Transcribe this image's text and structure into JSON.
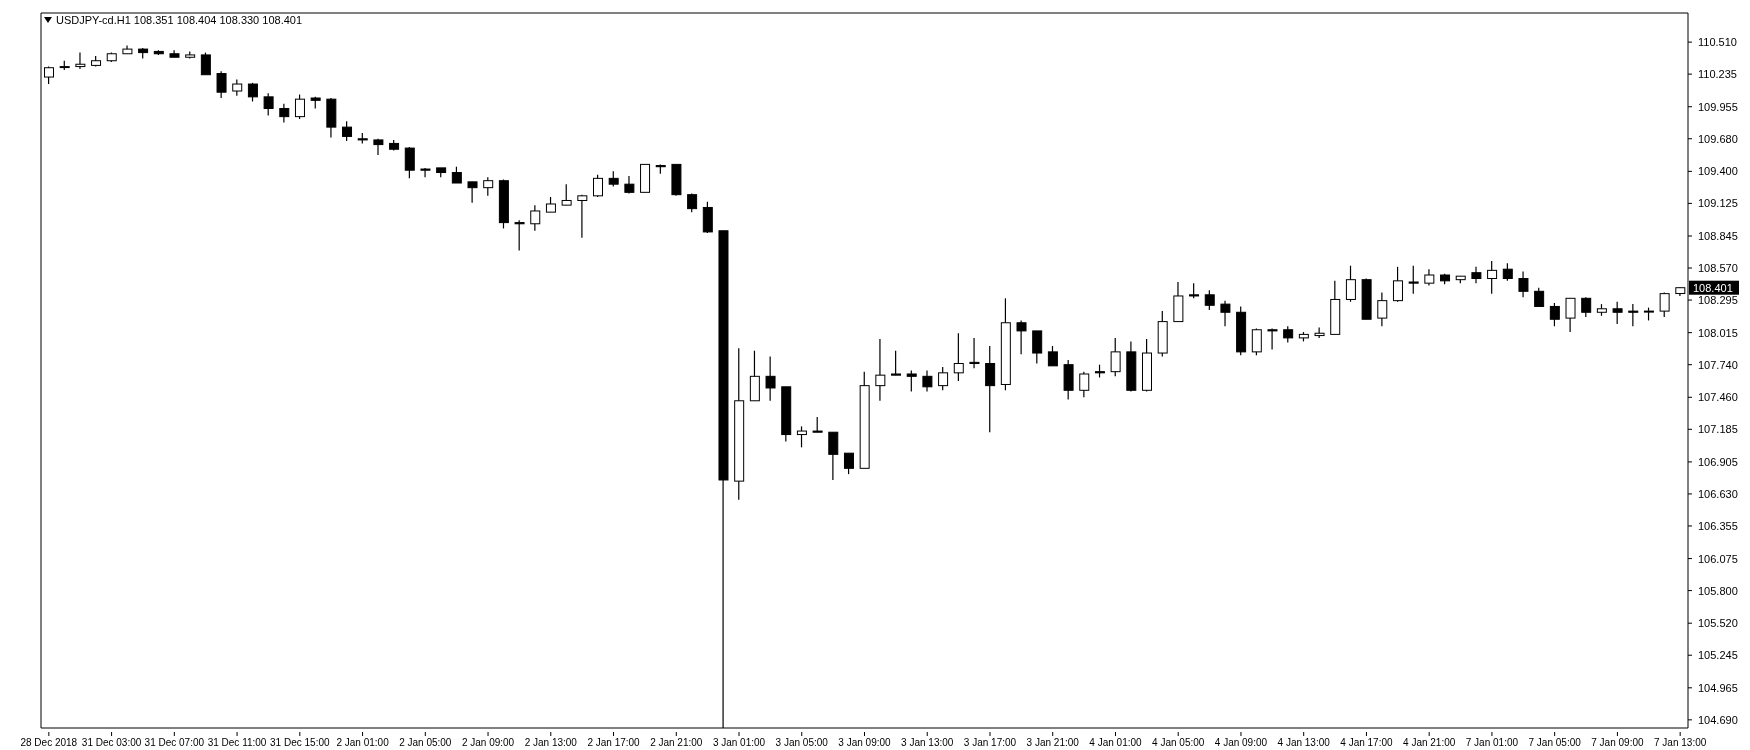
{
  "chart_data": {
    "type": "candlestick",
    "title": "USDJPY-cd.H1  108.351 108.404 108.330 108.401",
    "color": "#000000",
    "categories": [
      "28 Dec 2018",
      null,
      null,
      null,
      "31 Dec 03:00",
      null,
      null,
      null,
      "31 Dec 07:00",
      null,
      null,
      null,
      "31 Dec 11:00",
      null,
      null,
      null,
      "31 Dec 15:00",
      null,
      null,
      null,
      "2 Jan 01:00",
      null,
      null,
      null,
      "2 Jan 05:00",
      null,
      null,
      null,
      "2 Jan 09:00",
      null,
      null,
      null,
      "2 Jan 13:00",
      null,
      null,
      null,
      "2 Jan 17:00",
      null,
      null,
      null,
      "2 Jan 21:00",
      null,
      null,
      null,
      "3 Jan 01:00",
      null,
      null,
      null,
      "3 Jan 05:00",
      null,
      null,
      null,
      "3 Jan 09:00",
      null,
      null,
      null,
      "3 Jan 13:00",
      null,
      null,
      null,
      "3 Jan 17:00",
      null,
      null,
      null,
      "3 Jan 21:00",
      null,
      null,
      null,
      "4 Jan 01:00",
      null,
      null,
      null,
      "4 Jan 05:00",
      null,
      null,
      null,
      "4 Jan 09:00",
      null,
      null,
      null,
      "4 Jan 13:00",
      null,
      null,
      null,
      "4 Jan 17:00",
      null,
      null,
      null,
      "4 Jan 21:00",
      null,
      null,
      null,
      "7 Jan 01:00",
      null,
      null,
      null,
      "7 Jan 05:00",
      null,
      null,
      null,
      "7 Jan 09:00",
      null,
      null,
      null,
      "7 Jan 13:00"
    ],
    "ohlc": [
      [
        110.21,
        110.3,
        110.15,
        110.29
      ],
      [
        110.3,
        110.35,
        110.27,
        110.3
      ],
      [
        110.3,
        110.42,
        110.28,
        110.32
      ],
      [
        110.31,
        110.39,
        110.3,
        110.35
      ],
      [
        110.35,
        110.42,
        110.34,
        110.41
      ],
      [
        110.41,
        110.48,
        110.41,
        110.45
      ],
      [
        110.45,
        110.46,
        110.37,
        110.42
      ],
      [
        110.43,
        110.44,
        110.4,
        110.41
      ],
      [
        110.41,
        110.44,
        110.38,
        110.38
      ],
      [
        110.38,
        110.43,
        110.37,
        110.4
      ],
      [
        110.4,
        110.42,
        110.23,
        110.23
      ],
      [
        110.24,
        110.26,
        110.03,
        110.08
      ],
      [
        110.09,
        110.19,
        110.05,
        110.15
      ],
      [
        110.15,
        110.16,
        110.0,
        110.04
      ],
      [
        110.04,
        110.07,
        109.88,
        109.94
      ],
      [
        109.94,
        109.98,
        109.82,
        109.87
      ],
      [
        109.87,
        110.06,
        109.85,
        110.02
      ],
      [
        110.03,
        110.04,
        109.94,
        110.01
      ],
      [
        110.02,
        110.03,
        109.69,
        109.78
      ],
      [
        109.78,
        109.83,
        109.66,
        109.7
      ],
      [
        109.68,
        109.73,
        109.64,
        109.67
      ],
      [
        109.67,
        109.68,
        109.54,
        109.63
      ],
      [
        109.64,
        109.67,
        109.58,
        109.59
      ],
      [
        109.6,
        109.61,
        109.34,
        109.41
      ],
      [
        109.42,
        109.43,
        109.35,
        109.41
      ],
      [
        109.43,
        109.43,
        109.35,
        109.39
      ],
      [
        109.39,
        109.44,
        109.3,
        109.3
      ],
      [
        109.31,
        109.31,
        109.13,
        109.26
      ],
      [
        109.26,
        109.35,
        109.19,
        109.32
      ],
      [
        109.32,
        109.33,
        108.91,
        108.96
      ],
      [
        108.96,
        108.98,
        108.72,
        108.95
      ],
      [
        108.95,
        109.11,
        108.89,
        109.06
      ],
      [
        109.05,
        109.18,
        109.05,
        109.12
      ],
      [
        109.11,
        109.29,
        109.11,
        109.15
      ],
      [
        109.15,
        109.2,
        108.83,
        109.19
      ],
      [
        109.19,
        109.37,
        109.18,
        109.34
      ],
      [
        109.34,
        109.4,
        109.27,
        109.29
      ],
      [
        109.29,
        109.36,
        109.21,
        109.22
      ],
      [
        109.22,
        109.46,
        109.22,
        109.46
      ],
      [
        109.45,
        109.46,
        109.38,
        109.44
      ],
      [
        109.46,
        109.46,
        109.19,
        109.2
      ],
      [
        109.2,
        109.21,
        109.05,
        109.08
      ],
      [
        109.09,
        109.14,
        108.87,
        108.88
      ],
      [
        108.89,
        108.89,
        104.62,
        106.75
      ],
      [
        106.74,
        107.88,
        106.58,
        107.43
      ],
      [
        107.43,
        107.86,
        107.43,
        107.64
      ],
      [
        107.64,
        107.81,
        107.43,
        107.54
      ],
      [
        107.55,
        107.55,
        107.08,
        107.14
      ],
      [
        107.14,
        107.21,
        107.03,
        107.17
      ],
      [
        107.17,
        107.29,
        107.16,
        107.16
      ],
      [
        107.16,
        107.16,
        106.75,
        106.97
      ],
      [
        106.98,
        106.98,
        106.8,
        106.85
      ],
      [
        106.85,
        107.68,
        106.85,
        107.56
      ],
      [
        107.56,
        107.96,
        107.43,
        107.65
      ],
      [
        107.66,
        107.86,
        107.65,
        107.65
      ],
      [
        107.66,
        107.69,
        107.51,
        107.64
      ],
      [
        107.64,
        107.69,
        107.51,
        107.55
      ],
      [
        107.56,
        107.72,
        107.52,
        107.67
      ],
      [
        107.67,
        108.01,
        107.6,
        107.75
      ],
      [
        107.76,
        107.97,
        107.71,
        107.75
      ],
      [
        107.75,
        107.9,
        107.16,
        107.56
      ],
      [
        107.57,
        108.31,
        107.52,
        108.1
      ],
      [
        108.1,
        108.12,
        107.83,
        108.03
      ],
      [
        108.03,
        108.03,
        107.75,
        107.84
      ],
      [
        107.85,
        107.9,
        107.73,
        107.73
      ],
      [
        107.74,
        107.78,
        107.44,
        107.52
      ],
      [
        107.52,
        107.68,
        107.46,
        107.66
      ],
      [
        107.68,
        107.74,
        107.63,
        107.67
      ],
      [
        107.68,
        107.97,
        107.64,
        107.85
      ],
      [
        107.85,
        107.94,
        107.51,
        107.52
      ],
      [
        107.52,
        107.96,
        107.51,
        107.84
      ],
      [
        107.84,
        108.2,
        107.81,
        108.11
      ],
      [
        108.11,
        108.45,
        108.11,
        108.33
      ],
      [
        108.34,
        108.44,
        108.31,
        108.33
      ],
      [
        108.34,
        108.38,
        108.21,
        108.25
      ],
      [
        108.26,
        108.29,
        108.07,
        108.19
      ],
      [
        108.19,
        108.24,
        107.82,
        107.85
      ],
      [
        107.85,
        108.05,
        107.82,
        108.04
      ],
      [
        108.04,
        108.05,
        107.87,
        108.03
      ],
      [
        108.04,
        108.07,
        107.93,
        107.97
      ],
      [
        107.97,
        108.02,
        107.94,
        108.0
      ],
      [
        107.99,
        108.06,
        107.97,
        108.01
      ],
      [
        108.0,
        108.46,
        108.0,
        108.3
      ],
      [
        108.3,
        108.59,
        108.28,
        108.47
      ],
      [
        108.47,
        108.48,
        108.13,
        108.13
      ],
      [
        108.14,
        108.36,
        108.07,
        108.29
      ],
      [
        108.29,
        108.58,
        108.28,
        108.46
      ],
      [
        108.45,
        108.59,
        108.35,
        108.44
      ],
      [
        108.44,
        108.56,
        108.42,
        108.51
      ],
      [
        108.51,
        108.52,
        108.43,
        108.46
      ],
      [
        108.47,
        108.5,
        108.44,
        108.5
      ],
      [
        108.53,
        108.58,
        108.44,
        108.48
      ],
      [
        108.48,
        108.63,
        108.35,
        108.55
      ],
      [
        108.56,
        108.61,
        108.46,
        108.48
      ],
      [
        108.48,
        108.54,
        108.32,
        108.37
      ],
      [
        108.37,
        108.4,
        108.24,
        108.24
      ],
      [
        108.24,
        108.27,
        108.07,
        108.13
      ],
      [
        108.14,
        108.31,
        108.02,
        108.31
      ],
      [
        108.31,
        108.32,
        108.15,
        108.19
      ],
      [
        108.19,
        108.26,
        108.16,
        108.22
      ],
      [
        108.22,
        108.28,
        108.09,
        108.19
      ],
      [
        108.2,
        108.26,
        108.07,
        108.19
      ],
      [
        108.2,
        108.23,
        108.12,
        108.2
      ],
      [
        108.2,
        108.36,
        108.15,
        108.35
      ],
      [
        108.351,
        108.404,
        108.33,
        108.401
      ]
    ],
    "ylim": [
      104.62,
      110.76
    ],
    "yticks": [
      {
        "value": 110.51,
        "label": "110.510"
      },
      {
        "value": 110.235,
        "label": "110.235"
      },
      {
        "value": 109.955,
        "label": "109.955"
      },
      {
        "value": 109.68,
        "label": "109.680"
      },
      {
        "value": 109.4,
        "label": "109.400"
      },
      {
        "value": 109.125,
        "label": "109.125"
      },
      {
        "value": 108.845,
        "label": "108.845"
      },
      {
        "value": 108.57,
        "label": "108.570"
      },
      {
        "value": 108.295,
        "label": "108.295"
      },
      {
        "value": 108.015,
        "label": "108.015"
      },
      {
        "value": 107.74,
        "label": "107.740"
      },
      {
        "value": 107.46,
        "label": "107.460"
      },
      {
        "value": 107.185,
        "label": "107.185"
      },
      {
        "value": 106.905,
        "label": "106.905"
      },
      {
        "value": 106.63,
        "label": "106.630"
      },
      {
        "value": 106.355,
        "label": "106.355"
      },
      {
        "value": 106.075,
        "label": "106.075"
      },
      {
        "value": 105.8,
        "label": "105.800"
      },
      {
        "value": 105.52,
        "label": "105.520"
      },
      {
        "value": 105.245,
        "label": "105.245"
      },
      {
        "value": 104.965,
        "label": "104.965"
      },
      {
        "value": 104.69,
        "label": "104.690"
      }
    ],
    "annotations": [
      "108.401"
    ]
  }
}
